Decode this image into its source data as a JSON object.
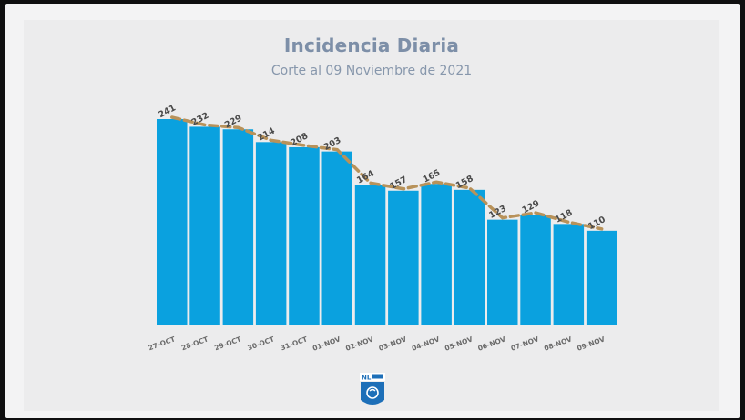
{
  "chart_data": {
    "type": "bar",
    "title": "Incidencia Diaria",
    "subtitle": "Corte al 09 Noviembre de 2021",
    "categories": [
      "27-OCT",
      "28-OCT",
      "29-OCT",
      "30-OCT",
      "31-OCT",
      "01-NOV",
      "02-NOV",
      "03-NOV",
      "04-NOV",
      "05-NOV",
      "06-NOV",
      "07-NOV",
      "08-NOV",
      "09-NOV"
    ],
    "values": [
      241,
      232,
      229,
      214,
      208,
      203,
      164,
      157,
      165,
      158,
      123,
      129,
      118,
      110
    ],
    "trendline": true,
    "ylim": [
      0,
      241
    ],
    "grid": false,
    "bar_color": "#0aa1df",
    "trend_color": "#b8925a"
  },
  "logo": {
    "text": "NL"
  }
}
